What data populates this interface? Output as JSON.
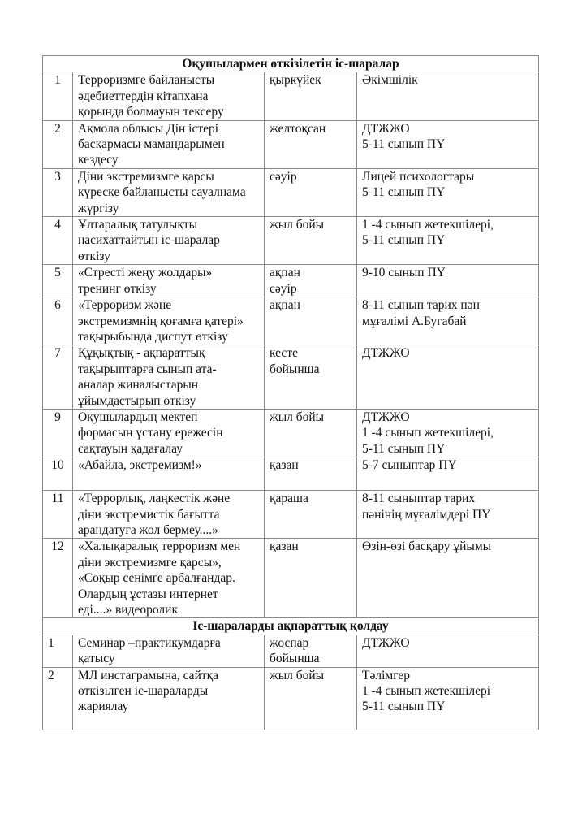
{
  "sections": [
    {
      "title": "Оқушылармен  өткізілетін іс-шаралар",
      "rows": [
        {
          "num": "1",
          "event": [
            "Терроризмге байланысты",
            "әдебиеттердің кітапхана",
            "қорында болмауын тексеру"
          ],
          "time": [
            "қыркүйек"
          ],
          "resp": [
            "Әкімшілік"
          ]
        },
        {
          "num": "2",
          "event": [
            "Ақмола облысы Дін істері",
            "басқармасы мамандарымен",
            "кездесу"
          ],
          "time": [
            "желтоқсан"
          ],
          "resp": [
            "ДТЖЖО",
            "5-11 сынып ПҮ"
          ]
        },
        {
          "num": "3",
          "event": [
            "Діни экстремизмге қарсы",
            "күреске байланысты сауалнама",
            "жүргізу"
          ],
          "time": [
            "сәуір"
          ],
          "resp": [
            "Лицей психологтары",
            "5-11 сынып ПҮ"
          ]
        },
        {
          "num": "4",
          "event": [
            "Ұлтаралық татулықты",
            "насихаттайтын іс-шаралар",
            "өткізу"
          ],
          "time": [
            "жыл бойы"
          ],
          "resp": [
            "1 -4 сынып жетекшілері,",
            "5-11 сынып ПҮ"
          ]
        },
        {
          "num": "5",
          "event": [
            "«Стресті жеңу жолдары»",
            "тренинг өткізу"
          ],
          "time": [
            "ақпан",
            "сәуір"
          ],
          "resp": [
            "9-10 сынып ПҮ"
          ]
        },
        {
          "num": "6",
          "event": [
            "«Терроризм және",
            "экстремизмнің қоғамға қатері»",
            "тақырыбында диспут өткізу"
          ],
          "time": [
            "ақпан"
          ],
          "resp": [
            "8-11 сынып тарих пән",
            "мұғалімі А.Бугабай"
          ]
        },
        {
          "num": "7",
          "event": [
            "Құқықтық - ақпараттық",
            "тақырыптарға сынып ата-",
            "аналар жиналыстарын",
            "ұйымдастырып өткізу"
          ],
          "time": [
            "кесте",
            "бойынша"
          ],
          "resp": [
            "ДТЖЖО"
          ]
        },
        {
          "num": "9",
          "event": [
            "Оқушылардың мектеп",
            "формасын ұстану ережесін",
            "сақтауын қадағалау"
          ],
          "time": [
            "жыл бойы"
          ],
          "resp": [
            "ДТЖЖО",
            "1 -4 сынып жетекшілері,",
            "5-11 сынып ПҮ"
          ]
        },
        {
          "num": "10",
          "event": [
            "«Абайла, экстремизм!»"
          ],
          "time": [
            "қазан"
          ],
          "resp": [
            "5-7 сыныптар ПҮ"
          ]
        },
        {
          "num": "11",
          "event": [
            "«Террорлық, лаңкестік және",
            "діни экстремистік бағытта",
            "арандатуға жол бермеу....»"
          ],
          "time": [
            "қараша"
          ],
          "resp": [
            "8-11 сыныптар тарих",
            "пәнінің мұғалімдері ПҮ"
          ]
        },
        {
          "num": "12",
          "event": [
            "«Халықаралық терроризм мен",
            "діни экстремизмге қарсы»,",
            "«Соқыр сенімге арбалғандар.",
            "Олардың ұстазы интернет",
            "еді....» видеоролик"
          ],
          "time": [
            "қазан"
          ],
          "resp": [
            "Өзін-өзі басқару ұйымы"
          ]
        }
      ]
    },
    {
      "title": "Іс-шараларды ақпараттық қолдау",
      "rows": [
        {
          "num": "1",
          "event": [
            "Семинар –практикумдарға",
            "қатысу"
          ],
          "time": [
            "жоспар",
            "бойынша"
          ],
          "resp": [
            "ДТЖЖО"
          ]
        },
        {
          "num": "2",
          "event": [
            "МЛ инстаграмына, сайтқа",
            "өткізілген іс-шараларды",
            "жариялау"
          ],
          "time": [
            "жыл бойы"
          ],
          "resp": [
            "Тәлімгер",
            "1 -4 сынып жетекшілері",
            "5-11 сынып ПҮ"
          ]
        }
      ]
    }
  ]
}
